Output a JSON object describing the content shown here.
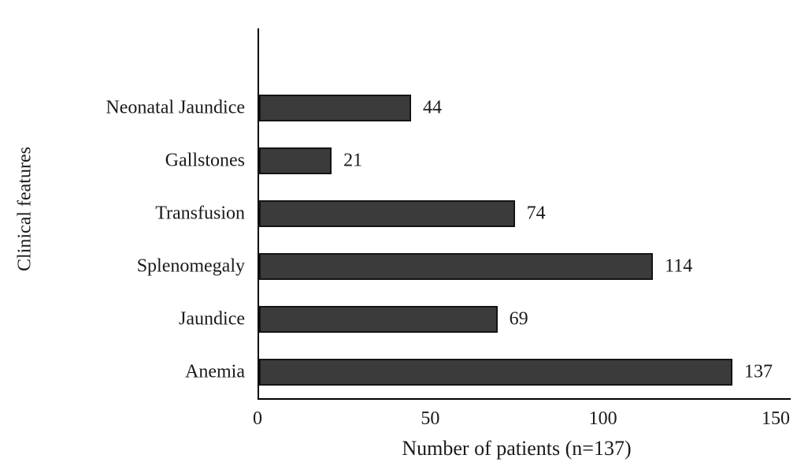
{
  "chart_data": {
    "type": "bar",
    "orientation": "horizontal",
    "categories": [
      "Neonatal Jaundice",
      "Gallstones",
      "Transfusion",
      "Splenomegaly",
      "Jaundice",
      "Anemia"
    ],
    "values": [
      44,
      21,
      74,
      114,
      69,
      137
    ],
    "title": "",
    "xlabel": "Number of patients (n=137)",
    "ylabel": "Clinical features",
    "x_ticks": [
      0,
      50,
      100,
      150
    ],
    "xlim": [
      0,
      150
    ],
    "grid": false,
    "legend": false,
    "data_labels": [
      "44",
      "21",
      "74",
      "114",
      "69",
      "137"
    ],
    "bar_fill_color": "#3b3b3b",
    "bar_border_color": "#141414",
    "axis_line_color": "#000000",
    "text_color": "#1a1a1a",
    "background_color": "#ffffff"
  }
}
